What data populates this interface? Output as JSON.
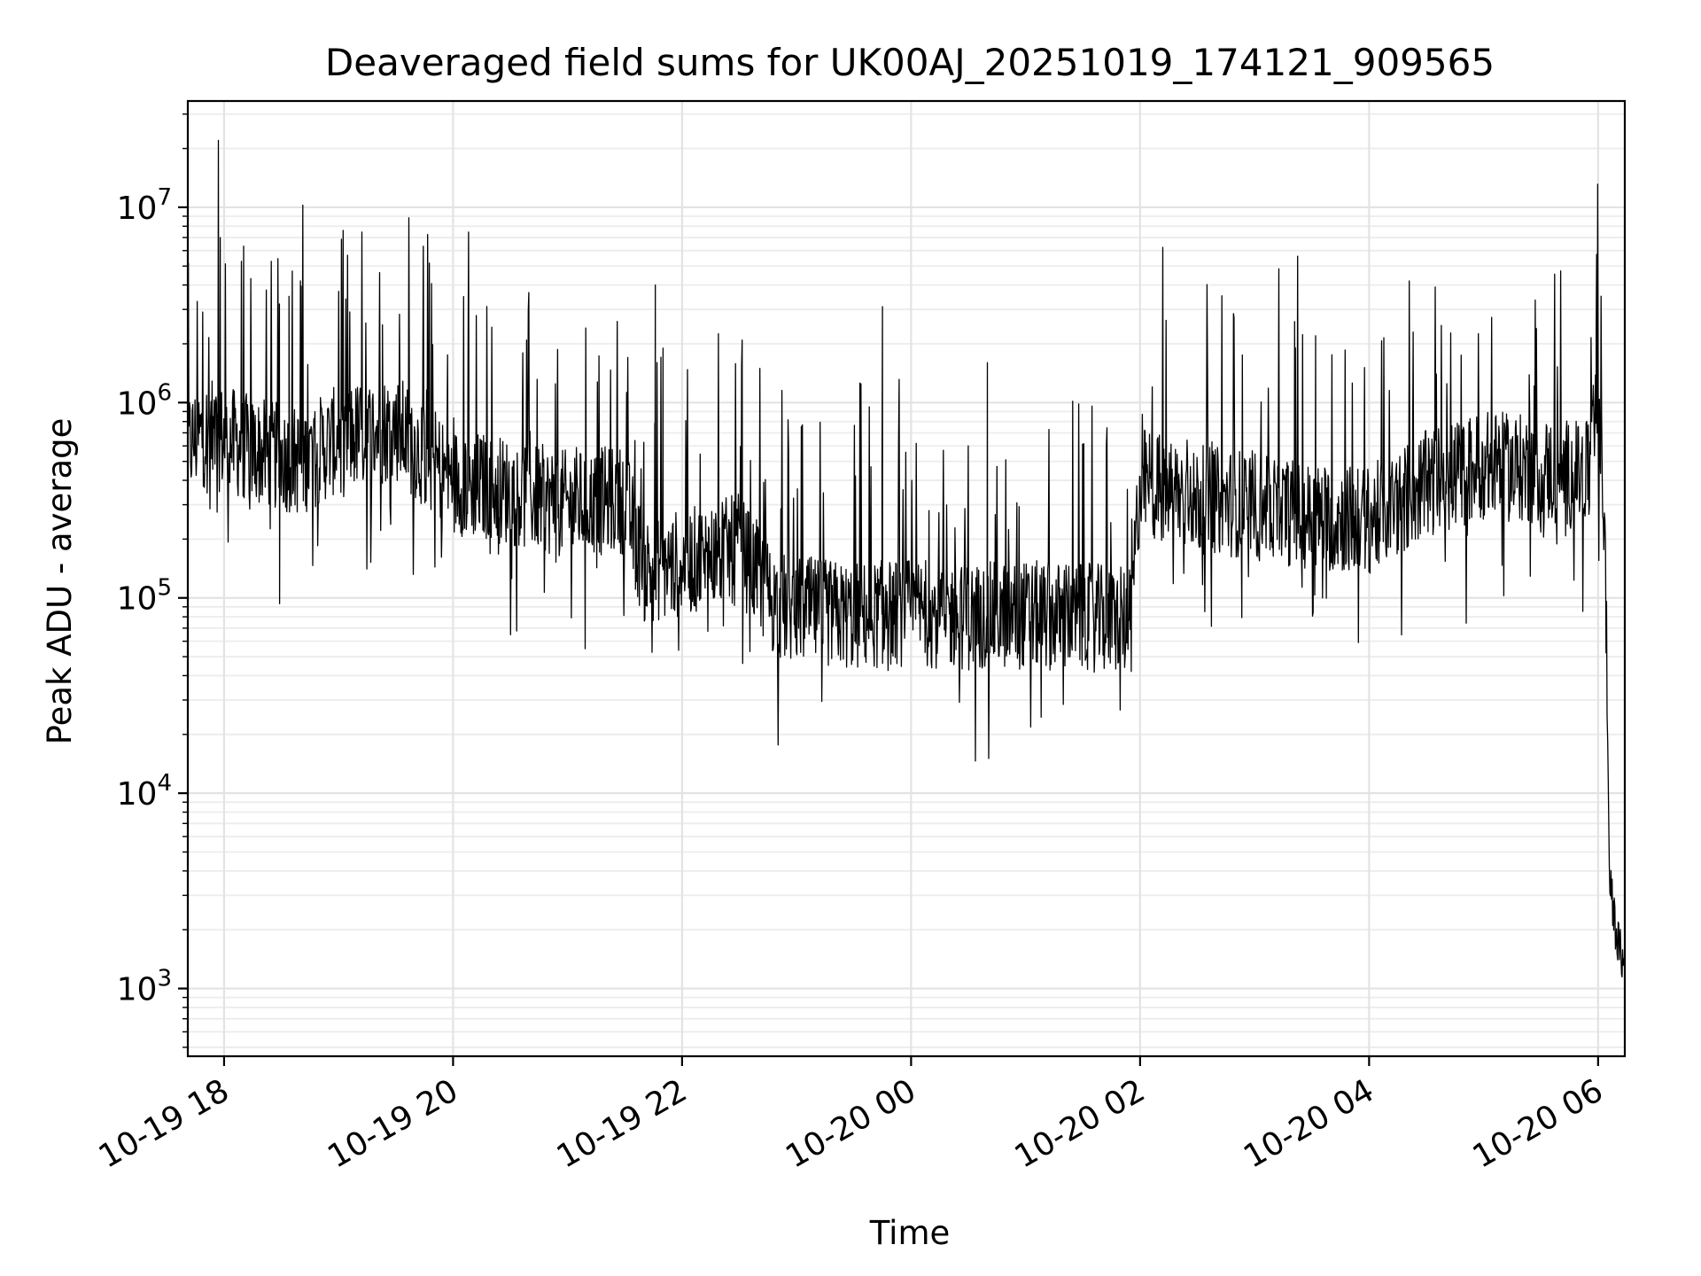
{
  "chart_data": {
    "type": "line",
    "title": "Deaveraged field sums for UK00AJ_20251019_174121_909565",
    "xlabel": "Time",
    "ylabel": "Peak ADU - average",
    "y_scale": "log",
    "ylim": [
      450,
      35000000
    ],
    "xlim": [
      "2025-10-19 17:41",
      "2025-10-20 06:14"
    ],
    "grid": true,
    "color": "#000000",
    "x_ticks": [
      {
        "label": "10-19 18",
        "value": "2025-10-19 18:00"
      },
      {
        "label": "10-19 20",
        "value": "2025-10-19 20:00"
      },
      {
        "label": "10-19 22",
        "value": "2025-10-19 22:00"
      },
      {
        "label": "10-20 00",
        "value": "2025-10-20 00:00"
      },
      {
        "label": "10-20 02",
        "value": "2025-10-20 02:00"
      },
      {
        "label": "10-20 04",
        "value": "2025-10-20 04:00"
      },
      {
        "label": "10-20 06",
        "value": "2025-10-20 06:00"
      }
    ],
    "y_ticks": [
      {
        "base": "10",
        "exp": "3",
        "value": 1000
      },
      {
        "base": "10",
        "exp": "4",
        "value": 10000
      },
      {
        "base": "10",
        "exp": "5",
        "value": 100000
      },
      {
        "base": "10",
        "exp": "6",
        "value": 1000000
      },
      {
        "base": "10",
        "exp": "7",
        "value": 10000000
      }
    ],
    "series": [
      {
        "x": [
          "2025-10-19 17:41",
          "2025-10-19 17:50",
          "2025-10-19 18:00",
          "2025-10-19 18:20",
          "2025-10-19 18:40",
          "2025-10-19 19:00",
          "2025-10-19 19:30",
          "2025-10-19 20:00",
          "2025-10-19 20:30",
          "2025-10-19 21:00",
          "2025-10-19 21:30",
          "2025-10-19 21:40",
          "2025-10-19 22:00",
          "2025-10-19 22:30",
          "2025-10-19 22:50",
          "2025-10-19 23:30",
          "2025-10-20 00:00",
          "2025-10-20 00:30",
          "2025-10-20 01:00",
          "2025-10-20 01:30",
          "2025-10-20 01:55",
          "2025-10-20 02:00",
          "2025-10-20 02:30",
          "2025-10-20 03:00",
          "2025-10-20 03:30",
          "2025-10-20 04:00",
          "2025-10-20 04:30",
          "2025-10-20 05:00",
          "2025-10-20 05:30",
          "2025-10-20 05:55",
          "2025-10-20 06:00",
          "2025-10-20 06:02",
          "2025-10-20 06:04",
          "2025-10-20 06:06",
          "2025-10-20 06:08",
          "2025-10-20 06:10",
          "2025-10-20 06:12",
          "2025-10-20 06:14"
        ],
        "y": [
          600000,
          700000,
          650000,
          550000,
          500000,
          650000,
          750000,
          400000,
          350000,
          300000,
          320000,
          140000,
          150000,
          180000,
          90000,
          80000,
          85000,
          80000,
          82000,
          80000,
          75000,
          400000,
          320000,
          300000,
          260000,
          250000,
          380000,
          480000,
          450000,
          420000,
          1000000,
          600000,
          120000,
          3500,
          2500,
          1800,
          1500,
          1200
        ],
        "noise": "heavy-spiky"
      }
    ],
    "spikes": [
      {
        "x": "2025-10-19 17:57",
        "y": 22000000
      },
      {
        "x": "2025-10-19 17:58",
        "y": 7000000
      },
      {
        "x": "2025-10-19 18:29",
        "y": 3200000
      },
      {
        "x": "2025-10-19 18:34",
        "y": 3500000
      },
      {
        "x": "2025-10-19 18:40",
        "y": 4200000
      },
      {
        "x": "2025-10-19 19:23",
        "y": 2500000
      },
      {
        "x": "2025-10-19 21:46",
        "y": 4000000
      },
      {
        "x": "2025-10-19 21:50",
        "y": 1900000
      },
      {
        "x": "2025-10-19 23:45",
        "y": 3100000
      },
      {
        "x": "2025-10-20 00:40",
        "y": 1600000
      },
      {
        "x": "2025-10-20 03:21",
        "y": 2600000
      },
      {
        "x": "2025-10-20 03:32",
        "y": 2200000
      },
      {
        "x": "2025-10-20 05:59",
        "y": 2400000
      }
    ]
  }
}
